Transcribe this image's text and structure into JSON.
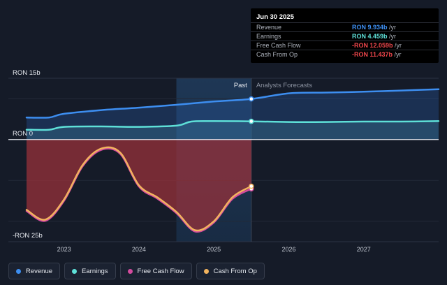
{
  "chart_data": {
    "type": "area",
    "y_unit_labels": {
      "top": "RON 15b",
      "zero": "RON 0",
      "bottom": "-RON 25b"
    },
    "ylim": [
      -25,
      15
    ],
    "xlim": [
      2022.5,
      2028.0
    ],
    "x_ticks": [
      "2023",
      "2024",
      "2025",
      "2026",
      "2027"
    ],
    "past_label": "Past",
    "forecast_label": "Analysts Forecasts",
    "past_end": 2025.5,
    "series": [
      {
        "name": "Revenue",
        "color": "#3d8ef0",
        "points": [
          [
            2022.5,
            5.4
          ],
          [
            2022.8,
            5.4
          ],
          [
            2023.0,
            6.3
          ],
          [
            2023.5,
            7.2
          ],
          [
            2024.0,
            7.8
          ],
          [
            2024.5,
            8.5
          ],
          [
            2025.0,
            9.3
          ],
          [
            2025.5,
            9.934
          ],
          [
            2026.0,
            11.3
          ],
          [
            2026.5,
            11.5
          ],
          [
            2027.0,
            11.7
          ],
          [
            2027.5,
            12.0
          ],
          [
            2028.0,
            12.3
          ]
        ]
      },
      {
        "name": "Earnings",
        "color": "#5ee0d8",
        "points": [
          [
            2022.5,
            2.4
          ],
          [
            2022.8,
            2.4
          ],
          [
            2023.0,
            3.1
          ],
          [
            2023.5,
            3.2
          ],
          [
            2024.0,
            3.1
          ],
          [
            2024.5,
            3.4
          ],
          [
            2024.7,
            4.4
          ],
          [
            2025.0,
            4.5
          ],
          [
            2025.5,
            4.459
          ],
          [
            2026.0,
            4.3
          ],
          [
            2026.5,
            4.3
          ],
          [
            2027.0,
            4.4
          ],
          [
            2027.5,
            4.4
          ],
          [
            2028.0,
            4.5
          ]
        ]
      },
      {
        "name": "Free Cash Flow",
        "color": "#d44b9e",
        "points": [
          [
            2022.5,
            -17.5
          ],
          [
            2022.75,
            -19.9
          ],
          [
            2023.0,
            -15.0
          ],
          [
            2023.25,
            -6.5
          ],
          [
            2023.5,
            -2.5
          ],
          [
            2023.75,
            -3.5
          ],
          [
            2024.0,
            -11.5
          ],
          [
            2024.25,
            -14.5
          ],
          [
            2024.5,
            -18.0
          ],
          [
            2024.75,
            -22.5
          ],
          [
            2025.0,
            -20.3
          ],
          [
            2025.25,
            -14.5
          ],
          [
            2025.5,
            -12.059
          ]
        ]
      },
      {
        "name": "Cash From Op",
        "color": "#f2b35e",
        "points": [
          [
            2022.5,
            -17.2
          ],
          [
            2022.75,
            -19.6
          ],
          [
            2023.0,
            -14.7
          ],
          [
            2023.25,
            -6.2
          ],
          [
            2023.5,
            -2.2
          ],
          [
            2023.75,
            -3.2
          ],
          [
            2024.0,
            -11.2
          ],
          [
            2024.25,
            -14.2
          ],
          [
            2024.5,
            -17.7
          ],
          [
            2024.75,
            -22.2
          ],
          [
            2025.0,
            -20.0
          ],
          [
            2025.25,
            -14.1
          ],
          [
            2025.5,
            -11.437
          ]
        ]
      }
    ]
  },
  "tooltip": {
    "date": "Jun 30 2025",
    "rows": [
      {
        "label": "Revenue",
        "value": "RON 9.934b",
        "unit": " /yr",
        "color": "#3d8ef0"
      },
      {
        "label": "Earnings",
        "value": "RON 4.459b",
        "unit": " /yr",
        "color": "#5ee0d8"
      },
      {
        "label": "Free Cash Flow",
        "value": "-RON 12.059b",
        "unit": " /yr",
        "color": "#f0474c"
      },
      {
        "label": "Cash From Op",
        "value": "-RON 11.437b",
        "unit": " /yr",
        "color": "#f0474c"
      }
    ]
  },
  "legend": [
    {
      "label": "Revenue",
      "color": "#3d8ef0"
    },
    {
      "label": "Earnings",
      "color": "#5ee0d8"
    },
    {
      "label": "Free Cash Flow",
      "color": "#d44b9e"
    },
    {
      "label": "Cash From Op",
      "color": "#f2b35e"
    }
  ]
}
